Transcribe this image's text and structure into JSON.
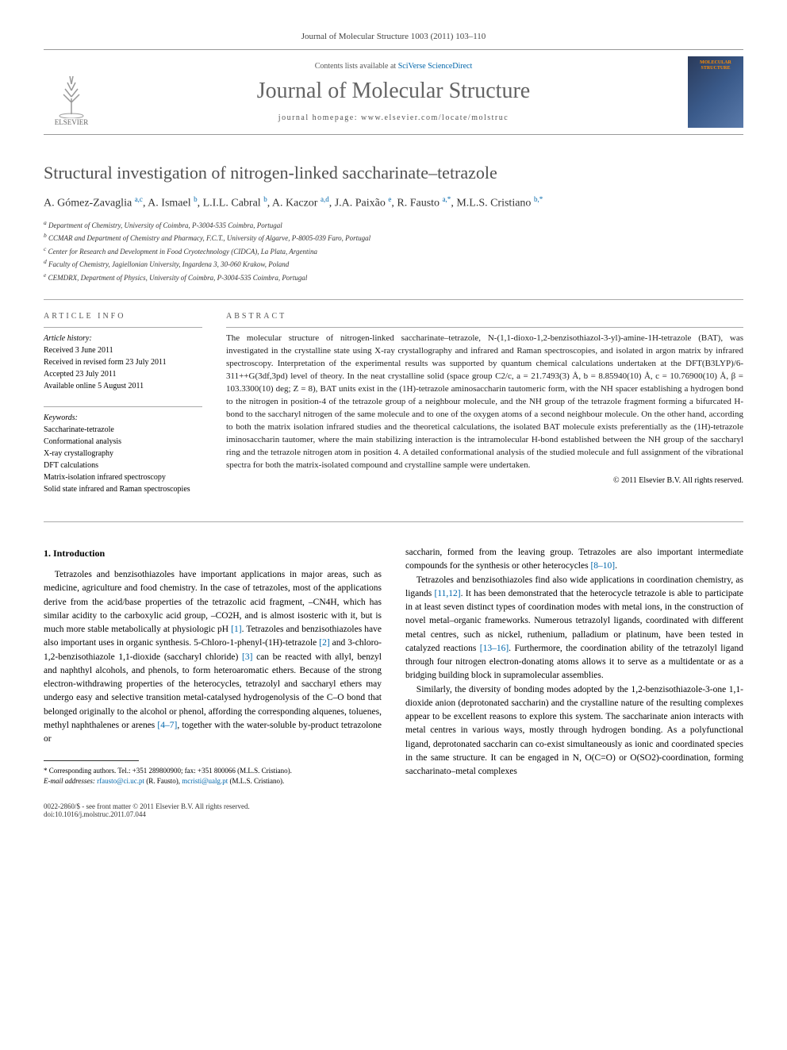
{
  "citation": "Journal of Molecular Structure 1003 (2011) 103–110",
  "header": {
    "contents_prefix": "Contents lists available at ",
    "contents_link": "SciVerse ScienceDirect",
    "journal_name": "Journal of Molecular Structure",
    "homepage_prefix": "journal homepage: ",
    "homepage_url": "www.elsevier.com/locate/molstruc",
    "publisher": "ELSEVIER",
    "cover_text": "MOLECULAR STRUCTURE"
  },
  "title": "Structural investigation of nitrogen-linked saccharinate–tetrazole",
  "authors_html": "A. Gómez-Zavaglia <sup>a,c</sup>, A. Ismael <sup>b</sup>, L.I.L. Cabral <sup>b</sup>, A. Kaczor <sup>a,d</sup>, J.A. Paixão <sup>e</sup>, R. Fausto <sup>a,*</sup>, M.L.S. Cristiano <sup>b,*</sup>",
  "affiliations": [
    "a Department of Chemistry, University of Coimbra, P-3004-535 Coimbra, Portugal",
    "b CCMAR and Department of Chemistry and Pharmacy, F.C.T., University of Algarve, P-8005-039 Faro, Portugal",
    "c Center for Research and Development in Food Cryotechnology (CIDCA), La Plata, Argentina",
    "d Faculty of Chemistry, Jagiellonian University, Ingardena 3, 30-060 Krakow, Poland",
    "e CEMDRX, Department of Physics, University of Coimbra, P-3004-535 Coimbra, Portugal"
  ],
  "article_info": {
    "heading": "ARTICLE INFO",
    "history_label": "Article history:",
    "history": [
      "Received 3 June 2011",
      "Received in revised form 23 July 2011",
      "Accepted 23 July 2011",
      "Available online 5 August 2011"
    ],
    "keywords_label": "Keywords:",
    "keywords": [
      "Saccharinate-tetrazole",
      "Conformational analysis",
      "X-ray crystallography",
      "DFT calculations",
      "Matrix-isolation infrared spectroscopy",
      "Solid state infrared and Raman spectroscopies"
    ]
  },
  "abstract": {
    "heading": "ABSTRACT",
    "text": "The molecular structure of nitrogen-linked saccharinate–tetrazole, N-(1,1-dioxo-1,2-benzisothiazol-3-yl)-amine-1H-tetrazole (BAT), was investigated in the crystalline state using X-ray crystallography and infrared and Raman spectroscopies, and isolated in argon matrix by infrared spectroscopy. Interpretation of the experimental results was supported by quantum chemical calculations undertaken at the DFT(B3LYP)/6-311++G(3df,3pd) level of theory. In the neat crystalline solid (space group C2/c, a = 21.7493(3) Å, b = 8.85940(10) Å, c = 10.76900(10) Å, β = 103.3300(10) deg; Z = 8), BAT units exist in the (1H)-tetrazole aminosaccharin tautomeric form, with the NH spacer establishing a hydrogen bond to the nitrogen in position-4 of the tetrazole group of a neighbour molecule, and the NH group of the tetrazole fragment forming a bifurcated H-bond to the saccharyl nitrogen of the same molecule and to one of the oxygen atoms of a second neighbour molecule. On the other hand, according to both the matrix isolation infrared studies and the theoretical calculations, the isolated BAT molecule exists preferentially as the (1H)-tetrazole iminosaccharin tautomer, where the main stabilizing interaction is the intramolecular H-bond established between the NH group of the saccharyl ring and the tetrazole nitrogen atom in position 4. A detailed conformational analysis of the studied molecule and full assignment of the vibrational spectra for both the matrix-isolated compound and crystalline sample were undertaken.",
    "copyright": "© 2011 Elsevier B.V. All rights reserved."
  },
  "body": {
    "section1_heading": "1. Introduction",
    "col1_p1": "Tetrazoles and benzisothiazoles have important applications in major areas, such as medicine, agriculture and food chemistry. In the case of tetrazoles, most of the applications derive from the acid/base properties of the tetrazolic acid fragment, –CN4H, which has similar acidity to the carboxylic acid group, –CO2H, and is almost isosteric with it, but is much more stable metabolically at physiologic pH [1]. Tetrazoles and benzisothiazoles have also important uses in organic synthesis. 5-Chloro-1-phenyl-(1H)-tetrazole [2] and 3-chloro-1,2-benzisothiazole 1,1-dioxide (saccharyl chloride) [3] can be reacted with allyl, benzyl and naphthyl alcohols, and phenols, to form heteroaromatic ethers. Because of the strong electron-withdrawing properties of the heterocycles, tetrazolyl and saccharyl ethers may undergo easy and selective transition metal-catalysed hydrogenolysis of the C–O bond that belonged originally to the alcohol or phenol, affording the corresponding alquenes, toluenes, methyl naphthalenes or arenes [4–7], together with the water-soluble by-product tetrazolone or",
    "col2_p1": "saccharin, formed from the leaving group. Tetrazoles are also important intermediate compounds for the synthesis or other heterocycles [8–10].",
    "col2_p2": "Tetrazoles and benzisothiazoles find also wide applications in coordination chemistry, as ligands [11,12]. It has been demonstrated that the heterocycle tetrazole is able to participate in at least seven distinct types of coordination modes with metal ions, in the construction of novel metal–organic frameworks. Numerous tetrazolyl ligands, coordinated with different metal centres, such as nickel, ruthenium, palladium or platinum, have been tested in catalyzed reactions [13–16]. Furthermore, the coordination ability of the tetrazolyl ligand through four nitrogen electron-donating atoms allows it to serve as a multidentate or as a bridging building block in supramolecular assemblies.",
    "col2_p3": "Similarly, the diversity of bonding modes adopted by the 1,2-benzisothiazole-3-one 1,1-dioxide anion (deprotonated saccharin) and the crystalline nature of the resulting complexes appear to be excellent reasons to explore this system. The saccharinate anion interacts with metal centres in various ways, mostly through hydrogen bonding. As a polyfunctional ligand, deprotonated saccharin can co-exist simultaneously as ionic and coordinated species in the same structure. It can be engaged in N, O(C=O) or O(SO2)-coordination, forming saccharinato–metal complexes"
  },
  "footnotes": {
    "corresponding": "* Corresponding authors. Tel.: +351 289800900; fax: +351 800066 (M.L.S. Cristiano).",
    "emails_label": "E-mail addresses: ",
    "email1": "rfausto@ci.uc.pt",
    "email1_author": " (R. Fausto), ",
    "email2": "mcristi@ualg.pt",
    "email2_author": " (M.L.S. Cristiano)."
  },
  "footer": {
    "line1": "0022-2860/$ - see front matter © 2011 Elsevier B.V. All rights reserved.",
    "line2": "doi:10.1016/j.molstruc.2011.07.044"
  },
  "links": {
    "ref1": "[1]",
    "ref2": "[2]",
    "ref3": "[3]",
    "ref47": "[4–7]",
    "ref810": "[8–10]",
    "ref1112": "[11,12]",
    "ref1316": "[13–16]"
  }
}
